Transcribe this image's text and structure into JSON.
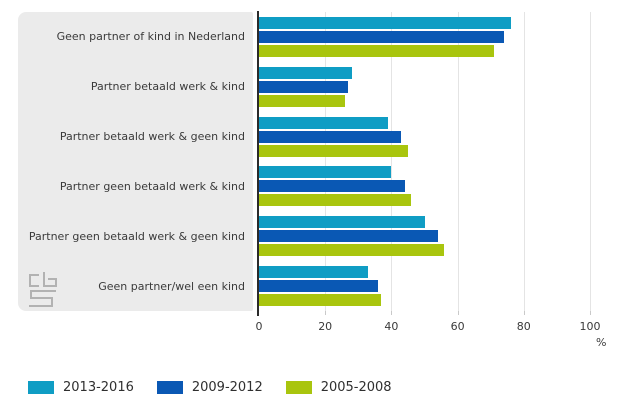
{
  "chart_data": {
    "type": "bar",
    "orientation": "horizontal",
    "categories": [
      "Geen partner of kind in Nederland",
      "Partner betaald werk & kind",
      "Partner betaald werk & geen kind",
      "Partner geen betaald werk & kind",
      "Partner geen betaald werk & geen kind",
      "Geen partner/wel een kind"
    ],
    "series": [
      {
        "name": "2013-2016",
        "color": "#0f9dc4",
        "values": [
          76,
          28,
          39,
          40,
          50,
          33
        ]
      },
      {
        "name": "2009-2012",
        "color": "#0a58b4",
        "values": [
          74,
          27,
          43,
          44,
          54,
          36
        ]
      },
      {
        "name": "2005-2008",
        "color": "#a9c50e",
        "values": [
          71,
          26,
          45,
          46,
          56,
          37
        ]
      }
    ],
    "xlabel": "%",
    "x_ticks": [
      0,
      20,
      40,
      60,
      80,
      100
    ],
    "xlim": [
      0,
      100
    ],
    "grid": true,
    "legend_position": "bottom"
  },
  "colors": {
    "panel_background": "#ebebeb",
    "gridline": "#e4e4e4",
    "axis_line": "#2b2b2b",
    "text": "#3a3a3a",
    "logo": "#b2b2b2"
  },
  "logo": {
    "icon": "cbs-logo"
  }
}
